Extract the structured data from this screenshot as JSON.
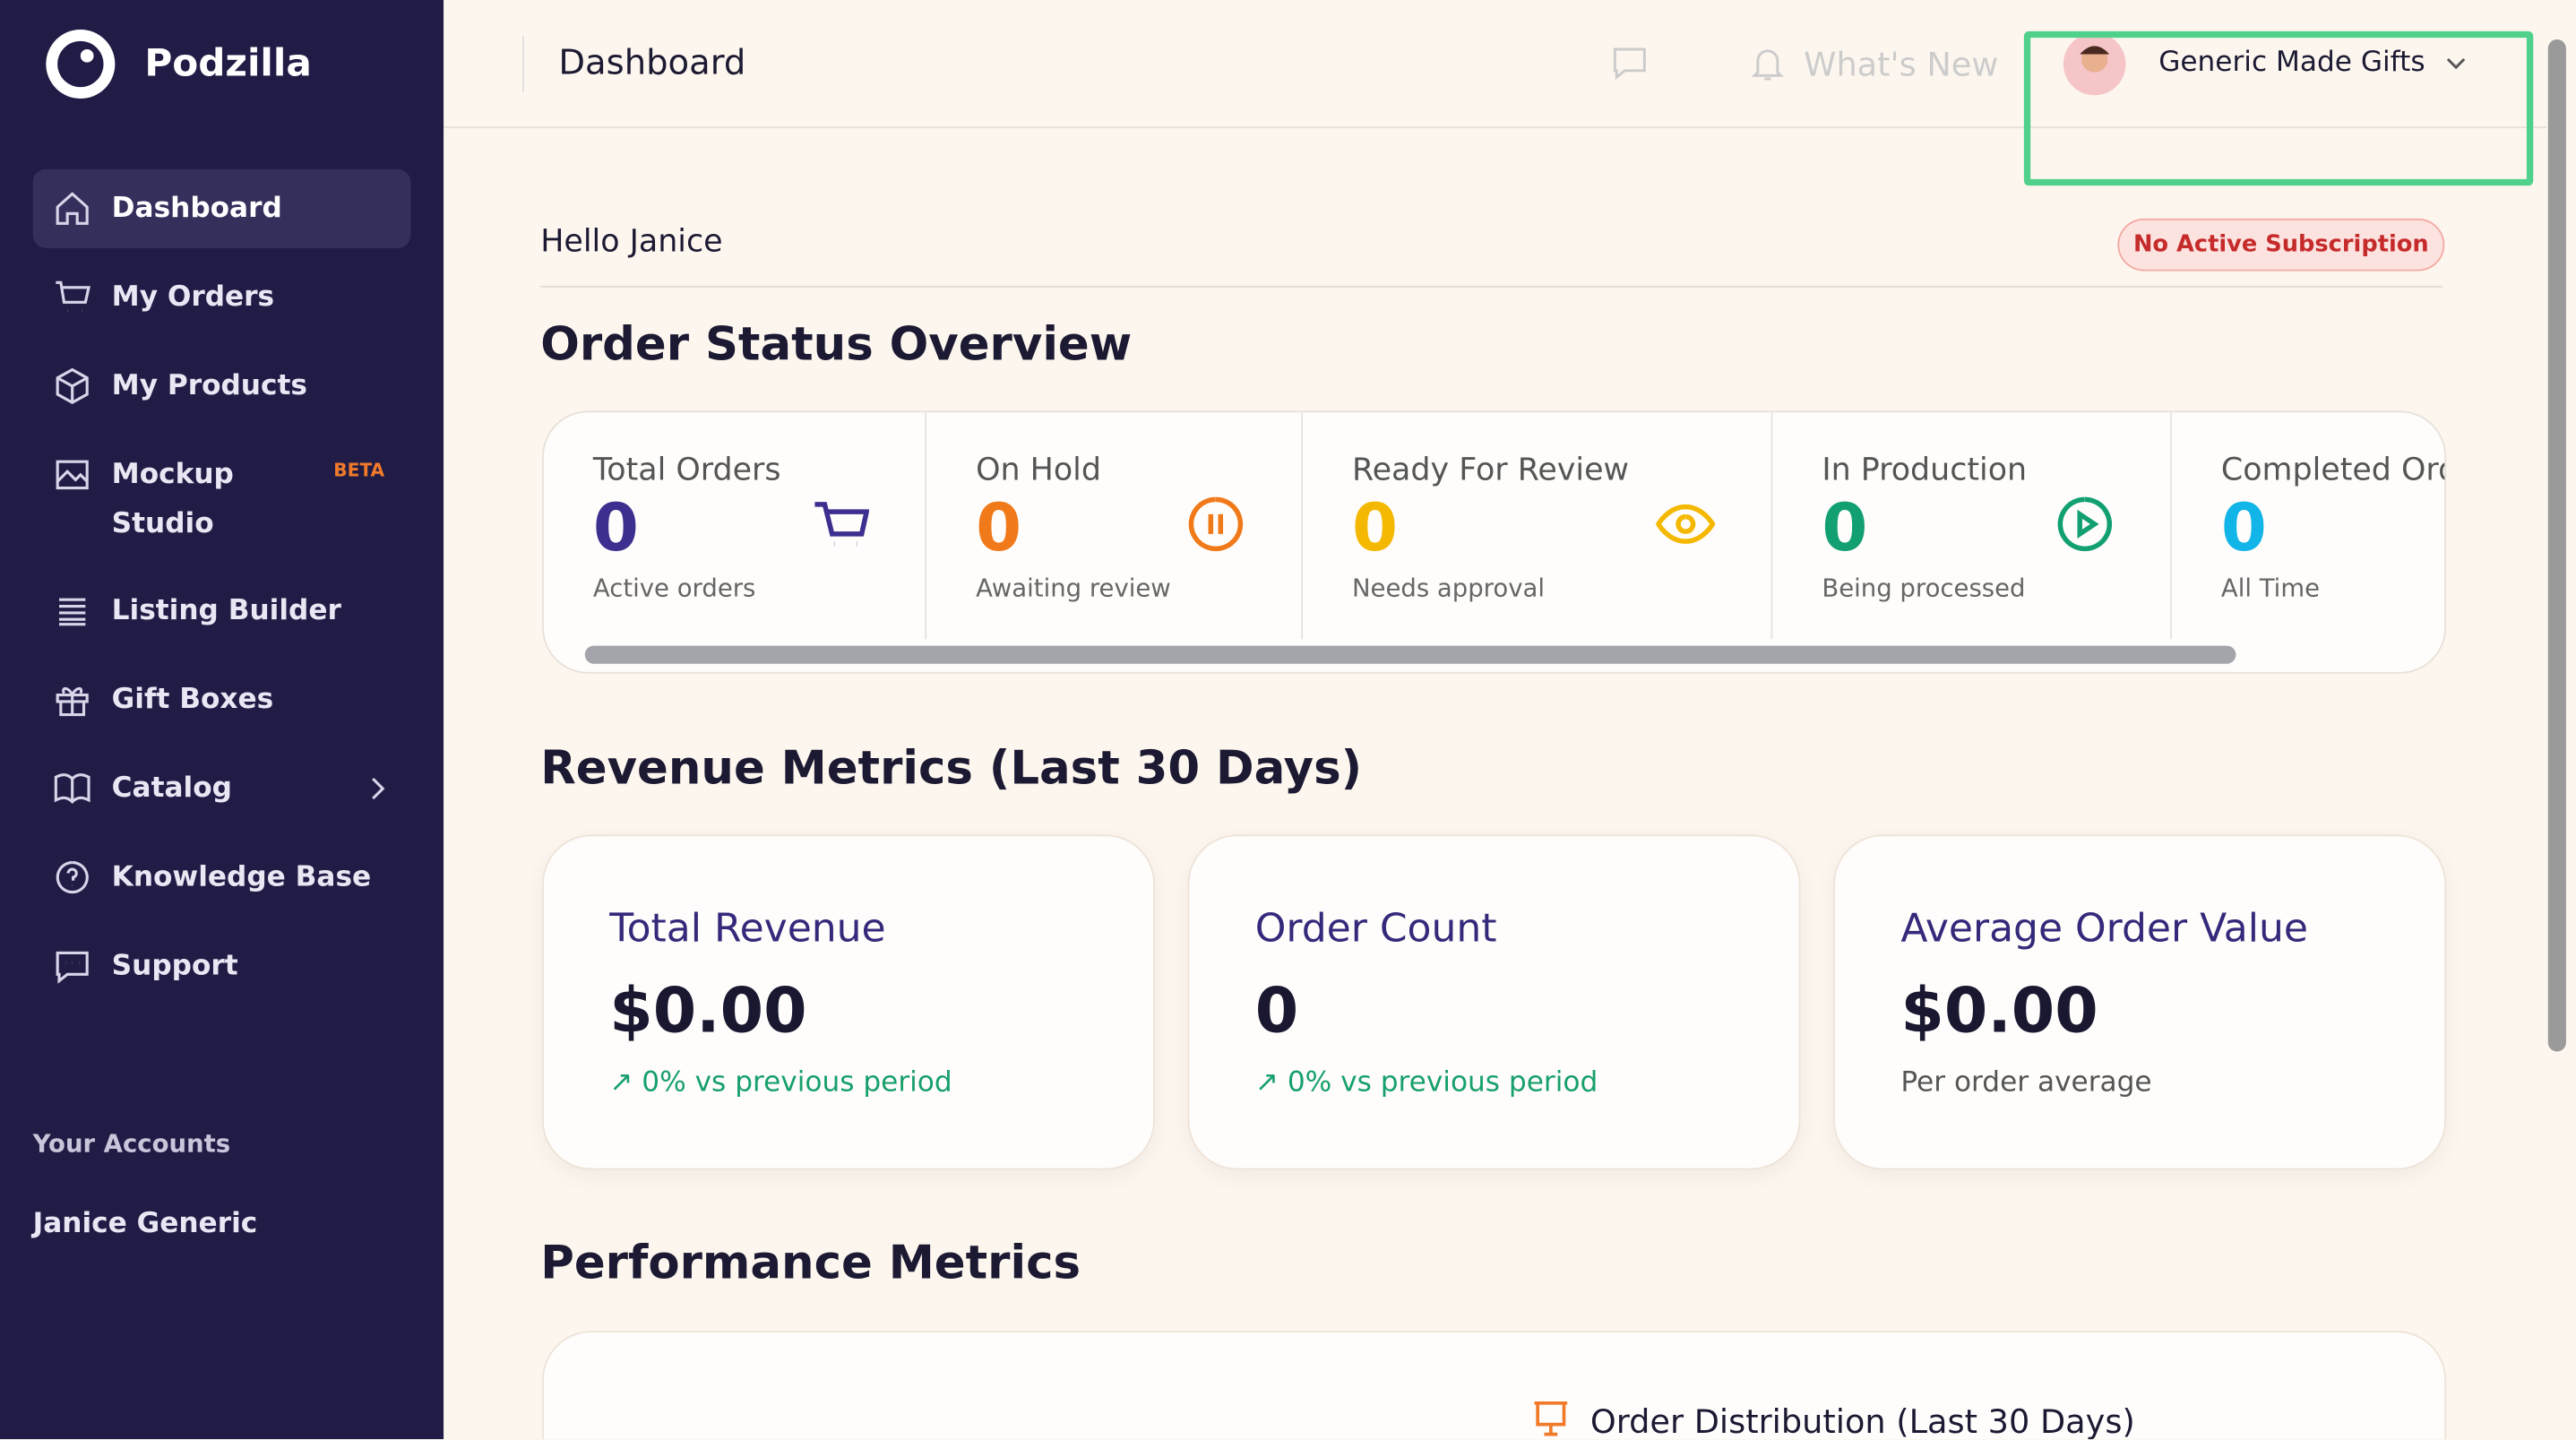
{
  "sidebar": {
    "brand": "Podzilla",
    "nav": [
      {
        "label": "Dashboard"
      },
      {
        "label": "My Orders"
      },
      {
        "label": "My Products"
      },
      {
        "label": "Mockup Studio",
        "badge": "BETA"
      },
      {
        "label": "Listing Builder"
      },
      {
        "label": "Gift Boxes"
      },
      {
        "label": "Catalog"
      },
      {
        "label": "Knowledge Base"
      },
      {
        "label": "Support"
      }
    ],
    "accounts_heading": "Your Accounts",
    "account": "Janice Generic"
  },
  "header": {
    "title": "Dashboard",
    "whats_new": "What's New",
    "account": "Generic Made Gifts"
  },
  "greeting": "Hello Janice",
  "subscription": "No Active Subscription",
  "order_status": {
    "title": "Order Status Overview",
    "cards": [
      {
        "title": "Total Orders",
        "value": 0,
        "subtitle": "Active orders"
      },
      {
        "title": "On Hold",
        "value": 0,
        "subtitle": "Awaiting review"
      },
      {
        "title": "Ready For Review",
        "value": 0,
        "subtitle": "Needs approval"
      },
      {
        "title": "In Production",
        "value": 0,
        "subtitle": "Being processed"
      },
      {
        "title": "Completed Ord",
        "value": 0,
        "subtitle": "All Time"
      }
    ]
  },
  "revenue": {
    "title": "Revenue Metrics (Last 30 Days)",
    "cards": [
      {
        "title": "Total Revenue",
        "value": "$0.00",
        "note": "↗ 0% vs previous period"
      },
      {
        "title": "Order Count",
        "value": 0,
        "note": "↗ 0% vs previous period"
      },
      {
        "title": "Average Order Value",
        "value": "$0.00",
        "note": "Per order average"
      }
    ]
  },
  "performance": {
    "title": "Performance Metrics",
    "chart_title": "Order Distribution (Last 30 Days)"
  }
}
